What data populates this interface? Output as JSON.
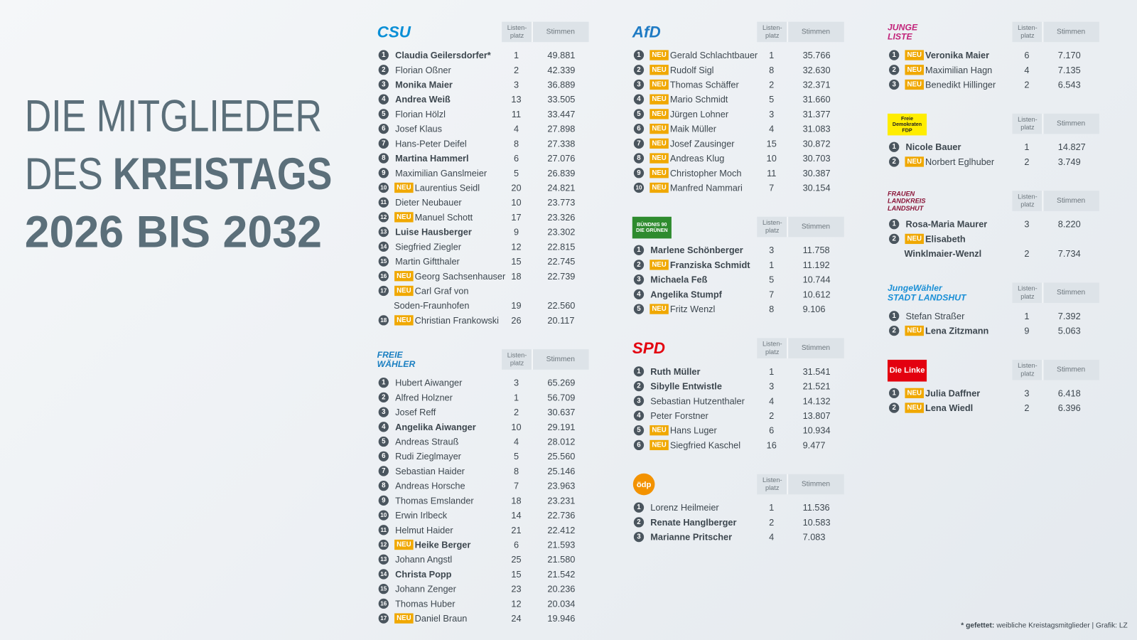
{
  "title": {
    "line1": "DIE MITGLIEDER",
    "line2a": "DES",
    "line2b": "KREISTAGS",
    "line3": "2026 BIS 2032"
  },
  "headers": {
    "list": [
      "Listen-",
      "platz"
    ],
    "votes": "Stimmen"
  },
  "badge": "NEU",
  "footer": {
    "bold": "* gefettet:",
    "text": "weibliche Kreistagsmitglieder | Grafik: LZ"
  },
  "columns": [
    [
      {
        "logo": {
          "lines": [
            "CSU"
          ],
          "color": "#0a8fd6"
        },
        "members": [
          {
            "n": 1,
            "name": "Claudia Geilersdorfer*",
            "list": 1,
            "votes": "49.881",
            "bold": true
          },
          {
            "n": 2,
            "name": "Florian Oßner",
            "list": 2,
            "votes": "42.339"
          },
          {
            "n": 3,
            "name": "Monika Maier",
            "list": 3,
            "votes": "36.889",
            "bold": true
          },
          {
            "n": 4,
            "name": "Andrea Weiß",
            "list": 13,
            "votes": "33.505",
            "bold": true
          },
          {
            "n": 5,
            "name": "Florian Hölzl",
            "list": 11,
            "votes": "33.447"
          },
          {
            "n": 6,
            "name": "Josef Klaus",
            "list": 4,
            "votes": "27.898"
          },
          {
            "n": 7,
            "name": "Hans-Peter Deifel",
            "list": 8,
            "votes": "27.338"
          },
          {
            "n": 8,
            "name": "Martina Hammerl",
            "list": 6,
            "votes": "27.076",
            "bold": true
          },
          {
            "n": 9,
            "name": "Maximilian Ganslmeier",
            "list": 5,
            "votes": "26.839"
          },
          {
            "n": 10,
            "name": "Laurentius Seidl",
            "list": 20,
            "votes": "24.821",
            "new": true
          },
          {
            "n": 11,
            "name": "Dieter Neubauer",
            "list": 10,
            "votes": "23.773"
          },
          {
            "n": 12,
            "name": "Manuel Schott",
            "list": 17,
            "votes": "23.326",
            "new": true
          },
          {
            "n": 13,
            "name": "Luise Hausberger",
            "list": 9,
            "votes": "23.302",
            "bold": true
          },
          {
            "n": 14,
            "name": "Siegfried Ziegler",
            "list": 12,
            "votes": "22.815"
          },
          {
            "n": 15,
            "name": "Martin Giftthaler",
            "list": 15,
            "votes": "22.745"
          },
          {
            "n": 16,
            "name": "Georg Sachsenhauser",
            "list": 18,
            "votes": "22.739",
            "new": true
          },
          {
            "n": 17,
            "name": [
              "Carl Graf von",
              "Soden-Fraunhofen"
            ],
            "list": 19,
            "votes": "22.560",
            "new": true
          },
          {
            "n": 18,
            "name": "Christian Frankowski",
            "list": 26,
            "votes": "20.117",
            "new": true
          }
        ]
      },
      {
        "logo": {
          "lines": [
            "FREIE",
            "WÄHLER"
          ],
          "color": "#1a7fc1"
        },
        "members": [
          {
            "n": 1,
            "name": "Hubert Aiwanger",
            "list": 3,
            "votes": "65.269"
          },
          {
            "n": 2,
            "name": "Alfred Holzner",
            "list": 1,
            "votes": "56.709"
          },
          {
            "n": 3,
            "name": "Josef Reff",
            "list": 2,
            "votes": "30.637"
          },
          {
            "n": 4,
            "name": "Angelika Aiwanger",
            "list": 10,
            "votes": "29.191",
            "bold": true
          },
          {
            "n": 5,
            "name": "Andreas Strauß",
            "list": 4,
            "votes": "28.012"
          },
          {
            "n": 6,
            "name": "Rudi Zieglmayer",
            "list": 5,
            "votes": "25.560"
          },
          {
            "n": 7,
            "name": "Sebastian Haider",
            "list": 8,
            "votes": "25.146"
          },
          {
            "n": 8,
            "name": "Andreas Horsche",
            "list": 7,
            "votes": "23.963"
          },
          {
            "n": 9,
            "name": "Thomas Emslander",
            "list": 18,
            "votes": "23.231"
          },
          {
            "n": 10,
            "name": "Erwin Irlbeck",
            "list": 14,
            "votes": "22.736"
          },
          {
            "n": 11,
            "name": "Helmut Haider",
            "list": 21,
            "votes": "22.412"
          },
          {
            "n": 12,
            "name": "Heike Berger",
            "list": 6,
            "votes": "21.593",
            "new": true,
            "bold": true
          },
          {
            "n": 13,
            "name": "Johann Angstl",
            "list": 25,
            "votes": "21.580"
          },
          {
            "n": 14,
            "name": "Christa Popp",
            "list": 15,
            "votes": "21.542",
            "bold": true
          },
          {
            "n": 15,
            "name": "Johann Zenger",
            "list": 23,
            "votes": "20.236"
          },
          {
            "n": 16,
            "name": "Thomas Huber",
            "list": 12,
            "votes": "20.034"
          },
          {
            "n": 17,
            "name": "Daniel Braun",
            "list": 24,
            "votes": "19.946",
            "new": true
          }
        ]
      }
    ],
    [
      {
        "logo": {
          "lines": [
            "AfD"
          ],
          "color": "#1f7bc4"
        },
        "members": [
          {
            "n": 1,
            "name": "Gerald Schlachtbauer",
            "list": 1,
            "votes": "35.766",
            "new": true
          },
          {
            "n": 2,
            "name": "Rudolf Sigl",
            "list": 8,
            "votes": "32.630",
            "new": true
          },
          {
            "n": 3,
            "name": "Thomas Schäffer",
            "list": 2,
            "votes": "32.371",
            "new": true
          },
          {
            "n": 4,
            "name": "Mario Schmidt",
            "list": 5,
            "votes": "31.660",
            "new": true
          },
          {
            "n": 5,
            "name": "Jürgen Lohner",
            "list": 3,
            "votes": "31.377",
            "new": true
          },
          {
            "n": 6,
            "name": "Maik Müller",
            "list": 4,
            "votes": "31.083",
            "new": true
          },
          {
            "n": 7,
            "name": "Josef Zausinger",
            "list": 15,
            "votes": "30.872",
            "new": true
          },
          {
            "n": 8,
            "name": "Andreas Klug",
            "list": 10,
            "votes": "30.703",
            "new": true
          },
          {
            "n": 9,
            "name": "Christopher Moch",
            "list": 11,
            "votes": "30.387",
            "new": true
          },
          {
            "n": 10,
            "name": "Manfred Nammari",
            "list": 7,
            "votes": "30.154",
            "new": true
          }
        ]
      },
      {
        "logo": {
          "lines": [
            "BÜNDNIS 90",
            "DIE GRÜNEN"
          ],
          "color": "#ffffff",
          "bg": "#2e8b2e"
        },
        "members": [
          {
            "n": 1,
            "name": "Marlene Schönberger",
            "list": 3,
            "votes": "11.758",
            "bold": true
          },
          {
            "n": 2,
            "name": "Franziska Schmidt",
            "list": 1,
            "votes": "11.192",
            "new": true,
            "bold": true
          },
          {
            "n": 3,
            "name": "Michaela Feß",
            "list": 5,
            "votes": "10.744",
            "bold": true
          },
          {
            "n": 4,
            "name": "Angelika Stumpf",
            "list": 7,
            "votes": "10.612",
            "bold": true
          },
          {
            "n": 5,
            "name": "Fritz Wenzl",
            "list": 8,
            "votes": "9.106",
            "new": true
          }
        ]
      },
      {
        "logo": {
          "lines": [
            "SPD"
          ],
          "color": "#e3000f"
        },
        "members": [
          {
            "n": 1,
            "name": "Ruth Müller",
            "list": 1,
            "votes": "31.541",
            "bold": true
          },
          {
            "n": 2,
            "name": "Sibylle Entwistle",
            "list": 3,
            "votes": "21.521",
            "bold": true
          },
          {
            "n": 3,
            "name": "Sebastian Hutzenthaler",
            "list": 4,
            "votes": "14.132"
          },
          {
            "n": 4,
            "name": "Peter Forstner",
            "list": 2,
            "votes": "13.807"
          },
          {
            "n": 5,
            "name": "Hans Luger",
            "list": 6,
            "votes": "10.934",
            "new": true
          },
          {
            "n": 6,
            "name": "Siegfried Kaschel",
            "list": 16,
            "votes": "9.477",
            "new": true
          }
        ]
      },
      {
        "logo": {
          "lines": [
            "ödp"
          ],
          "color": "#ffffff",
          "bg": "#f39200",
          "shape": "circle"
        },
        "members": [
          {
            "n": 1,
            "name": "Lorenz Heilmeier",
            "list": 1,
            "votes": "11.536"
          },
          {
            "n": 2,
            "name": "Renate Hanglberger",
            "list": 2,
            "votes": "10.583",
            "bold": true
          },
          {
            "n": 3,
            "name": "Marianne Pritscher",
            "list": 4,
            "votes": "7.083",
            "bold": true
          }
        ]
      }
    ],
    [
      {
        "logo": {
          "lines": [
            "JUNGE",
            "LISTE"
          ],
          "color": "#c2237a"
        },
        "members": [
          {
            "n": 1,
            "name": "Veronika Maier",
            "list": 6,
            "votes": "7.170",
            "new": true,
            "bold": true
          },
          {
            "n": 2,
            "name": "Maximilian Hagn",
            "list": 4,
            "votes": "7.135",
            "new": true
          },
          {
            "n": 3,
            "name": "Benedikt Hillinger",
            "list": 2,
            "votes": "6.543",
            "new": true
          }
        ]
      },
      {
        "logo": {
          "lines": [
            "Freie",
            "Demokraten",
            "FDP"
          ],
          "color": "#222222",
          "bg": "#ffed00"
        },
        "members": [
          {
            "n": 1,
            "name": "Nicole Bauer",
            "list": 1,
            "votes": "14.827",
            "bold": true
          },
          {
            "n": 2,
            "name": "Norbert Eglhuber",
            "list": 2,
            "votes": "3.749",
            "new": true
          }
        ]
      },
      {
        "logo": {
          "lines": [
            "FRAUEN",
            "LANDKREIS",
            "LANDSHUT"
          ],
          "color": "#8a1538"
        },
        "members": [
          {
            "n": 1,
            "name": "Rosa-Maria Maurer",
            "list": 3,
            "votes": "8.220",
            "bold": true
          },
          {
            "n": 2,
            "name": [
              "Elisabeth",
              "Winklmaier-Wenzl"
            ],
            "list": 2,
            "votes": "7.734",
            "new": true,
            "bold": true
          }
        ]
      },
      {
        "logo": {
          "lines": [
            "JungeWähler",
            "STADT LANDSHUT"
          ],
          "color": "#1a8fd6"
        },
        "members": [
          {
            "n": 1,
            "name": "Stefan Straßer",
            "list": 1,
            "votes": "7.392"
          },
          {
            "n": 2,
            "name": "Lena Zitzmann",
            "list": 9,
            "votes": "5.063",
            "new": true,
            "bold": true
          }
        ]
      },
      {
        "logo": {
          "lines": [
            "Die Linke"
          ],
          "color": "#ffffff",
          "bg": "#e3000f"
        },
        "members": [
          {
            "n": 1,
            "name": "Julia Daffner",
            "list": 3,
            "votes": "6.418",
            "new": true,
            "bold": true
          },
          {
            "n": 2,
            "name": "Lena Wiedl",
            "list": 2,
            "votes": "6.396",
            "new": true,
            "bold": true
          }
        ]
      }
    ]
  ]
}
